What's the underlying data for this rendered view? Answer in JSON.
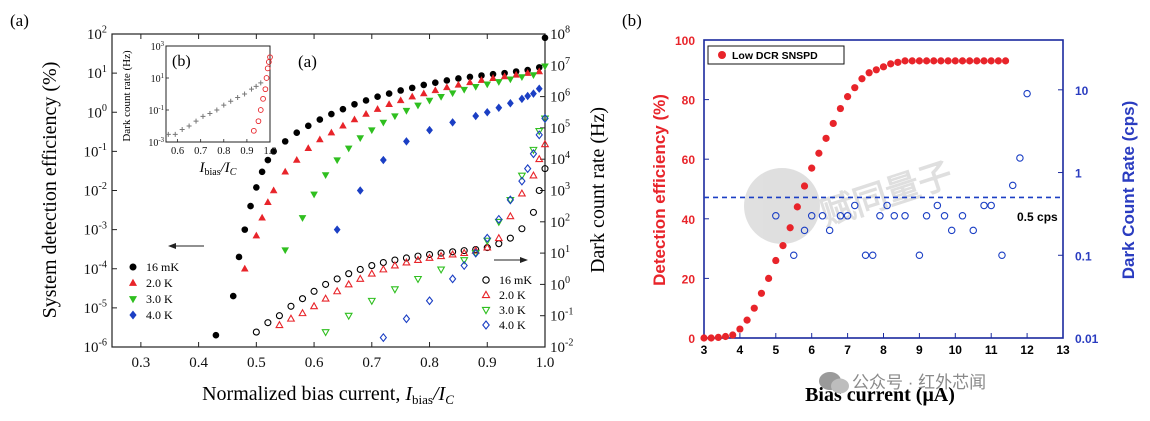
{
  "chart_data": [
    {
      "panel": "(a)",
      "type": "scatter",
      "title": "",
      "inner_label": "(a)",
      "xlabel": "Normalized bias current, I_bias/I_C",
      "xlabel_main": "Normalized bias current, ",
      "xlabel_var": "I",
      "xlabel_sub": "bias",
      "xlabel_den": "/I",
      "xlabel_den_sub": "C",
      "ylabel_left": "System detection efficiency (%)",
      "ylabel_right": "Dark count rate (Hz)",
      "xlim": [
        0.25,
        1.0
      ],
      "x_ticks": [
        "0.3",
        "0.4",
        "0.5",
        "0.6",
        "0.7",
        "0.8",
        "0.9",
        "1.0"
      ],
      "ylim_left": [
        1e-06,
        100
      ],
      "yscale_left": "log",
      "y_left_ticks": [
        "10-6",
        "10-5",
        "10-4",
        "10-3",
        "10-2",
        "10-1",
        "100",
        "101",
        "102"
      ],
      "ylim_right": [
        0.01,
        100000000.0
      ],
      "yscale_right": "log",
      "y_right_ticks": [
        "10-2",
        "10-1",
        "100",
        "101",
        "102",
        "103",
        "104",
        "105",
        "106",
        "107",
        "108"
      ],
      "legend_left": [
        "16 mK",
        "2.0 K",
        "3.0 K",
        "4.0 K"
      ],
      "legend_right": [
        "16 mK",
        "2.0 K",
        "3.0 K",
        "4.0 K"
      ],
      "colors": [
        "#000000",
        "#e8242a",
        "#2fbf1f",
        "#1b3fc4"
      ],
      "sde_series": [
        {
          "name": "16 mK",
          "marker": "circle-filled",
          "x": [
            0.43,
            0.46,
            0.47,
            0.48,
            0.49,
            0.5,
            0.51,
            0.52,
            0.53,
            0.55,
            0.57,
            0.59,
            0.61,
            0.63,
            0.65,
            0.67,
            0.69,
            0.71,
            0.73,
            0.75,
            0.77,
            0.79,
            0.81,
            0.83,
            0.85,
            0.87,
            0.89,
            0.91,
            0.93,
            0.95,
            0.97,
            0.99,
            1.0
          ],
          "y": [
            2e-06,
            2e-05,
            0.0002,
            0.001,
            0.004,
            0.012,
            0.03,
            0.06,
            0.1,
            0.18,
            0.3,
            0.45,
            0.65,
            0.9,
            1.2,
            1.6,
            2.0,
            2.5,
            3.0,
            3.6,
            4.2,
            5.0,
            5.7,
            6.5,
            7.3,
            8.0,
            8.7,
            9.4,
            10,
            11,
            12,
            14,
            80
          ]
        },
        {
          "name": "2.0 K",
          "marker": "triangle-up-filled",
          "x": [
            0.48,
            0.5,
            0.51,
            0.52,
            0.53,
            0.55,
            0.57,
            0.59,
            0.61,
            0.63,
            0.65,
            0.67,
            0.69,
            0.71,
            0.73,
            0.75,
            0.77,
            0.79,
            0.81,
            0.83,
            0.85,
            0.87,
            0.89,
            0.91,
            0.93,
            0.95,
            0.97,
            0.99
          ],
          "y": [
            0.0001,
            0.0007,
            0.002,
            0.005,
            0.01,
            0.03,
            0.06,
            0.12,
            0.2,
            0.3,
            0.45,
            0.65,
            0.9,
            1.2,
            1.6,
            2.0,
            2.5,
            3.0,
            3.6,
            4.3,
            5.0,
            5.8,
            6.6,
            7.4,
            8.2,
            9.0,
            10,
            11
          ]
        },
        {
          "name": "3.0 K",
          "marker": "triangle-down-filled",
          "x": [
            0.55,
            0.58,
            0.6,
            0.62,
            0.64,
            0.66,
            0.68,
            0.7,
            0.72,
            0.74,
            0.76,
            0.78,
            0.8,
            0.82,
            0.84,
            0.86,
            0.88,
            0.9,
            0.92,
            0.94,
            0.96,
            0.98,
            1.0
          ],
          "y": [
            0.0003,
            0.002,
            0.008,
            0.025,
            0.06,
            0.12,
            0.22,
            0.35,
            0.55,
            0.8,
            1.1,
            1.5,
            2.0,
            2.5,
            3.1,
            3.8,
            4.5,
            5.2,
            6.0,
            7.0,
            8.0,
            9.0,
            15
          ]
        },
        {
          "name": "4.0 K",
          "marker": "diamond-filled",
          "x": [
            0.64,
            0.68,
            0.72,
            0.76,
            0.8,
            0.84,
            0.88,
            0.9,
            0.92,
            0.94,
            0.96,
            0.97,
            0.98,
            0.99
          ],
          "y": [
            0.001,
            0.01,
            0.06,
            0.18,
            0.35,
            0.55,
            0.8,
            1.0,
            1.3,
            1.7,
            2.2,
            2.6,
            3.0,
            4.0
          ]
        }
      ],
      "dcr_series": [
        {
          "name": "16 mK",
          "marker": "circle-open",
          "x": [
            0.5,
            0.52,
            0.54,
            0.56,
            0.58,
            0.6,
            0.62,
            0.64,
            0.66,
            0.68,
            0.7,
            0.72,
            0.74,
            0.76,
            0.78,
            0.8,
            0.82,
            0.84,
            0.86,
            0.88,
            0.9,
            0.92,
            0.94,
            0.96,
            0.98,
            0.99,
            1.0
          ],
          "y": [
            0.03,
            0.06,
            0.1,
            0.2,
            0.35,
            0.6,
            1.0,
            1.5,
            2.2,
            3.0,
            4.0,
            5.0,
            6.0,
            7.0,
            8.0,
            9.0,
            10,
            11,
            12,
            13,
            15,
            20,
            30,
            60,
            200,
            1000,
            5000
          ]
        },
        {
          "name": "2.0 K",
          "marker": "triangle-up-open",
          "x": [
            0.54,
            0.56,
            0.58,
            0.6,
            0.62,
            0.64,
            0.66,
            0.68,
            0.7,
            0.72,
            0.74,
            0.76,
            0.78,
            0.8,
            0.82,
            0.84,
            0.86,
            0.88,
            0.9,
            0.92,
            0.94,
            0.96,
            0.98,
            0.99,
            1.0
          ],
          "y": [
            0.05,
            0.08,
            0.12,
            0.2,
            0.35,
            0.6,
            1.0,
            1.5,
            2.2,
            3.0,
            4.0,
            5.0,
            6.0,
            7.0,
            8.0,
            9.0,
            10,
            12,
            15,
            30,
            150,
            800,
            3000,
            10000,
            30000
          ]
        },
        {
          "name": "3.0 K",
          "marker": "triangle-down-open",
          "x": [
            0.62,
            0.66,
            0.7,
            0.74,
            0.78,
            0.82,
            0.86,
            0.88,
            0.9,
            0.92,
            0.94,
            0.96,
            0.98,
            0.99,
            1.0
          ],
          "y": [
            0.03,
            0.1,
            0.3,
            0.7,
            1.5,
            3.0,
            6.0,
            10,
            25,
            100,
            500,
            3000,
            20000,
            80000,
            200000
          ]
        },
        {
          "name": "4.0 K",
          "marker": "diamond-open",
          "x": [
            0.72,
            0.76,
            0.8,
            0.84,
            0.86,
            0.88,
            0.9,
            0.92,
            0.94,
            0.96,
            0.97,
            0.98,
            0.99,
            1.0
          ],
          "y": [
            0.02,
            0.08,
            0.3,
            1.5,
            4.0,
            10,
            30,
            120,
            500,
            2000,
            5000,
            15000,
            60000,
            200000
          ]
        }
      ],
      "inset": {
        "label": "(b)",
        "ylabel": "Dark count rate (Hz)",
        "xlabel_var": "I",
        "xlabel_sub": "bias",
        "xlabel_den": "/I",
        "xlabel_den_sub": "C",
        "xlim": [
          0.55,
          1.0
        ],
        "x_ticks": [
          "0.6",
          "0.7",
          "0.8",
          "0.9",
          "1.0"
        ],
        "ylim": [
          0.001,
          1000
        ],
        "yscale": "log",
        "y_ticks": [
          "10-3",
          "10-1",
          "101",
          "103"
        ],
        "cross_series": {
          "x": [
            0.56,
            0.59,
            0.62,
            0.65,
            0.68,
            0.71,
            0.74,
            0.77,
            0.8,
            0.83,
            0.86,
            0.89,
            0.92,
            0.94,
            0.96
          ],
          "y": [
            0.003,
            0.003,
            0.006,
            0.01,
            0.02,
            0.04,
            0.06,
            0.1,
            0.2,
            0.35,
            0.6,
            1.0,
            2.0,
            3.0,
            5.0
          ],
          "color": "#777777"
        },
        "circle_series": {
          "x": [
            0.93,
            0.95,
            0.96,
            0.97,
            0.98,
            0.985,
            0.99,
            0.995,
            1.0
          ],
          "y": [
            0.005,
            0.02,
            0.1,
            0.5,
            2,
            10,
            40,
            100,
            200
          ],
          "color": "#e8242a"
        }
      }
    },
    {
      "panel": "(b)",
      "type": "scatter",
      "title": "",
      "xlabel": "Bias current (μA)",
      "ylabel_left": "Detection efficiency (%)",
      "ylabel_right": "Dark Count Rate (cps)",
      "xlim": [
        3,
        13
      ],
      "x_ticks": [
        "3",
        "4",
        "5",
        "6",
        "7",
        "8",
        "9",
        "10",
        "11",
        "12",
        "13"
      ],
      "ylim_left": [
        0,
        100
      ],
      "y_left_ticks": [
        "0",
        "20",
        "40",
        "60",
        "80",
        "100"
      ],
      "ylim_right": [
        0.01,
        40
      ],
      "yscale_right": "log",
      "y_right_ticks": [
        "0.01",
        "0.1",
        "1",
        "10"
      ],
      "legend": "Low DCR SNSPD",
      "reference_line": {
        "value": 0.5,
        "label": "0.5 cps"
      },
      "watermark": "赋同量子",
      "de_series": {
        "name": "Low DCR SNSPD",
        "color": "#e8242a",
        "x": [
          3.0,
          3.2,
          3.4,
          3.6,
          3.8,
          4.0,
          4.2,
          4.4,
          4.6,
          4.8,
          5.0,
          5.2,
          5.4,
          5.6,
          5.8,
          6.0,
          6.2,
          6.4,
          6.6,
          6.8,
          7.0,
          7.2,
          7.4,
          7.6,
          7.8,
          8.0,
          8.2,
          8.4,
          8.6,
          8.8,
          9.0,
          9.2,
          9.4,
          9.6,
          9.8,
          10.0,
          10.2,
          10.4,
          10.6,
          10.8,
          11.0,
          11.2,
          11.4
        ],
        "y": [
          0,
          0,
          0.2,
          0.5,
          1,
          3,
          6,
          10,
          15,
          20,
          26,
          31,
          37,
          44,
          51,
          57,
          62,
          67,
          72,
          77,
          81,
          84,
          87,
          89,
          90,
          91,
          92,
          92.5,
          93,
          93,
          93,
          93,
          93,
          93,
          93,
          93,
          93,
          93,
          93,
          93,
          93,
          93,
          93
        ]
      },
      "dcr_series": {
        "color": "#1b3fc4",
        "x": [
          5.0,
          5.5,
          5.8,
          6.0,
          6.3,
          6.5,
          6.8,
          7.0,
          7.2,
          7.5,
          7.7,
          7.9,
          8.1,
          8.3,
          8.6,
          9.0,
          9.2,
          9.5,
          9.7,
          9.9,
          10.2,
          10.5,
          10.8,
          11.0,
          11.3,
          11.6,
          11.8,
          12.0
        ],
        "y": [
          0.3,
          0.1,
          0.2,
          0.3,
          0.3,
          0.2,
          0.3,
          0.3,
          0.4,
          0.1,
          0.1,
          0.3,
          0.4,
          0.3,
          0.3,
          0.1,
          0.3,
          0.4,
          0.3,
          0.2,
          0.3,
          0.2,
          0.4,
          0.4,
          0.1,
          0.7,
          1.5,
          9
        ]
      }
    }
  ],
  "footer": {
    "watermark": "公众号 · 红外芯闻"
  }
}
